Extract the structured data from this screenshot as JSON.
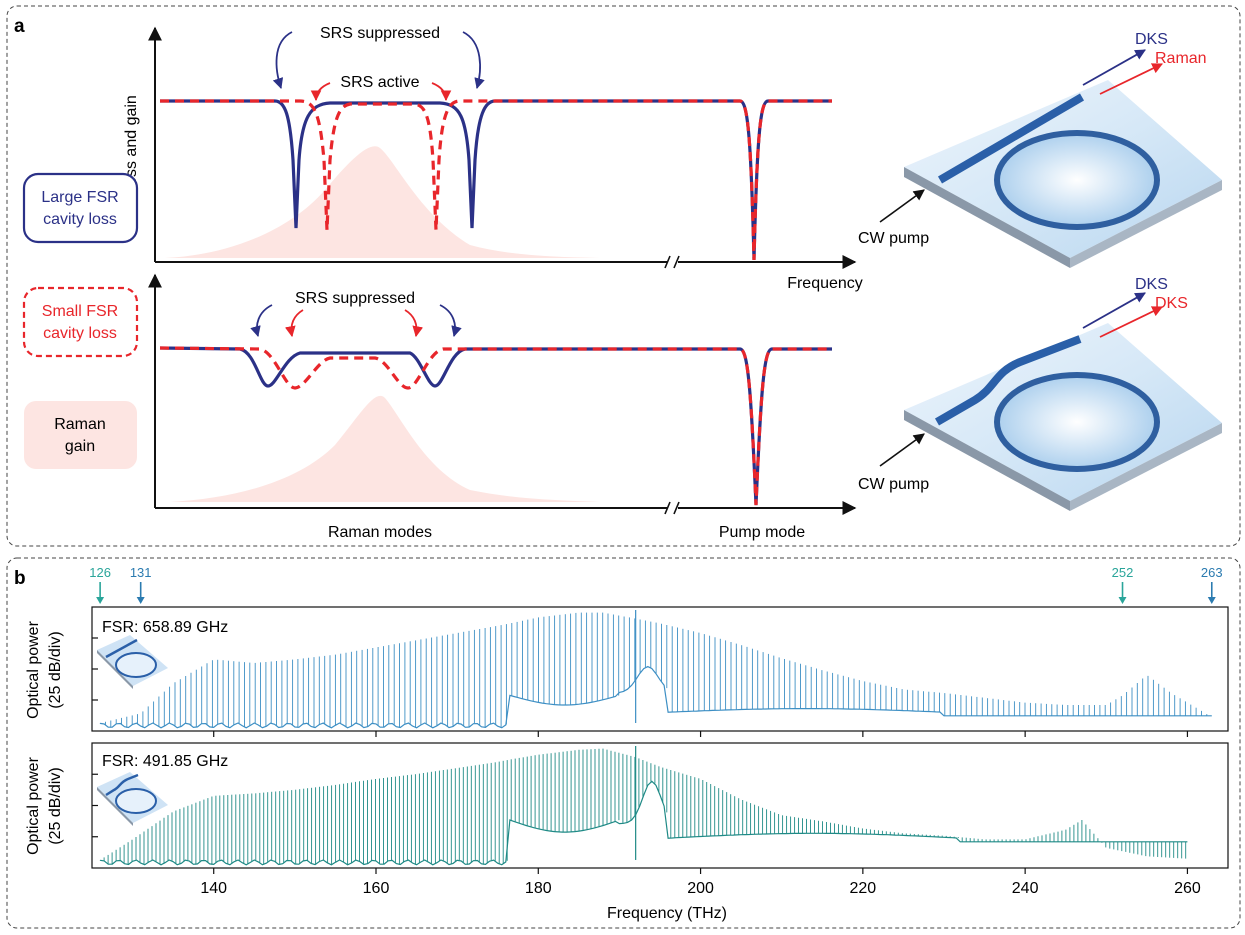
{
  "panel_a": {
    "label": "a",
    "y_axis_label": "Loss and gain",
    "top_x_label": "Frequency",
    "bottom_x_left_label": "Raman modes",
    "bottom_x_right_label": "Pump mode",
    "top_annotations": {
      "suppressed": "SRS suppressed",
      "active": "SRS active"
    },
    "bottom_annotations": {
      "suppressed": "SRS suppressed"
    },
    "legend": [
      {
        "line1": "Large FSR",
        "line2": "cavity loss",
        "color": "#2b3187",
        "style": "solid"
      },
      {
        "line1": "Small FSR",
        "line2": "cavity loss",
        "color": "#e8262b",
        "style": "dashed"
      },
      {
        "line1": "Raman",
        "line2": "gain",
        "color": "#fbdcd8",
        "style": "filled"
      }
    ],
    "top_device": {
      "pump": "CW pump",
      "out_blue": "DKS",
      "out_red": "Raman"
    },
    "bottom_device": {
      "pump": "CW pump",
      "out_blue": "DKS",
      "out_red": "DKS"
    },
    "colors": {
      "large_fsr": "#2b3187",
      "small_fsr": "#e8262b",
      "raman_gain": "#fde5e2"
    }
  },
  "panel_b": {
    "label": "b",
    "markers": [
      {
        "text": "126",
        "x": 126,
        "color": "#2aa59a"
      },
      {
        "text": "131",
        "x": 131,
        "color": "#2b7bb0"
      },
      {
        "text": "252",
        "x": 252,
        "color": "#2aa59a"
      },
      {
        "text": "263",
        "x": 263,
        "color": "#2b7bb0"
      }
    ],
    "y_axis_label_line1": "Optical power",
    "y_axis_label_line2": "(25 dB/div)",
    "x_axis_label": "Frequency (THz)",
    "top_plot_label": "FSR: 658.89 GHz",
    "bottom_plot_label": "FSR: 491.85 GHz"
  },
  "chart_data": [
    {
      "type": "line",
      "title": "FSR: 658.89 GHz",
      "xlabel": "Frequency (THz)",
      "ylabel": "Optical power (25 dB/div)",
      "xlim": [
        125,
        265
      ],
      "x_ticks": [
        140,
        160,
        180,
        200,
        220,
        240,
        260
      ],
      "series": [
        {
          "color": "#3d8fc4",
          "x": [
            126,
            131,
            135,
            140,
            145,
            150,
            155,
            160,
            165,
            170,
            175,
            176.5,
            180,
            185,
            188,
            192,
            195,
            200,
            205,
            210,
            215,
            220,
            225,
            230,
            235,
            240,
            245,
            250,
            252,
            255,
            258,
            263
          ],
          "y": [
            0.05,
            0.13,
            0.38,
            0.58,
            0.55,
            0.58,
            0.62,
            0.68,
            0.74,
            0.8,
            0.86,
            0.88,
            0.93,
            0.97,
            0.97,
            0.92,
            0.88,
            0.8,
            0.7,
            0.59,
            0.49,
            0.4,
            0.33,
            0.3,
            0.26,
            0.22,
            0.2,
            0.2,
            0.28,
            0.45,
            0.3,
            0.1
          ]
        }
      ]
    },
    {
      "type": "line",
      "title": "FSR: 491.85 GHz",
      "xlabel": "Frequency (THz)",
      "ylabel": "Optical power (25 dB/div)",
      "xlim": [
        125,
        265
      ],
      "x_ticks": [
        140,
        160,
        180,
        200,
        220,
        240,
        260
      ],
      "series": [
        {
          "color": "#1f8a86",
          "x": [
            126,
            130,
            135,
            140,
            145,
            150,
            155,
            160,
            165,
            170,
            175,
            176.5,
            180,
            185,
            188,
            192,
            195,
            200,
            205,
            210,
            215,
            220,
            225,
            230,
            235,
            240,
            245,
            247,
            250,
            255,
            260
          ],
          "y": [
            0.05,
            0.22,
            0.45,
            0.58,
            0.6,
            0.63,
            0.67,
            0.72,
            0.76,
            0.81,
            0.86,
            0.88,
            0.92,
            0.96,
            0.97,
            0.9,
            0.82,
            0.72,
            0.55,
            0.42,
            0.37,
            0.31,
            0.27,
            0.25,
            0.22,
            0.22,
            0.3,
            0.38,
            0.15,
            0.08,
            0.06
          ]
        }
      ]
    }
  ]
}
